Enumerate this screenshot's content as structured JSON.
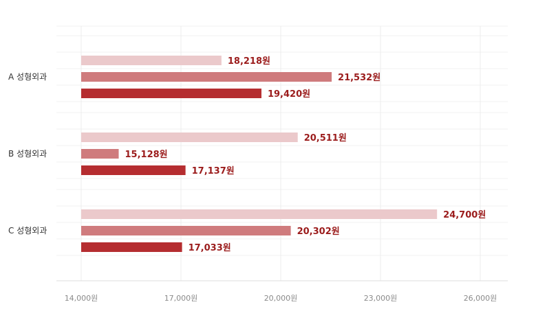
{
  "chart_data": {
    "type": "bar",
    "orientation": "horizontal",
    "categories": [
      "A 성형외과",
      "B 성형외과",
      "C 성형외과"
    ],
    "series": [
      {
        "values": [
          18218,
          20511,
          24700
        ],
        "color": "#ebc9cb"
      },
      {
        "values": [
          21532,
          15128,
          20302
        ],
        "color": "#cf7b7d"
      },
      {
        "values": [
          19420,
          17137,
          17033
        ],
        "color": "#b52d30"
      }
    ],
    "value_labels": [
      [
        "18,218원",
        "20,511원",
        "24,700원"
      ],
      [
        "21,532원",
        "15,128원",
        "20,302원"
      ],
      [
        "19,420원",
        "17,137원",
        "17,033원"
      ]
    ],
    "xlim": [
      14000,
      26000
    ],
    "x_ticks": [
      14000,
      17000,
      20000,
      23000,
      26000
    ],
    "x_tick_labels": [
      "14,000원",
      "17,000원",
      "20,000원",
      "23,000원",
      "26,000원"
    ],
    "grid": true,
    "legend": "none",
    "title": "",
    "xlabel": "",
    "ylabel": ""
  }
}
